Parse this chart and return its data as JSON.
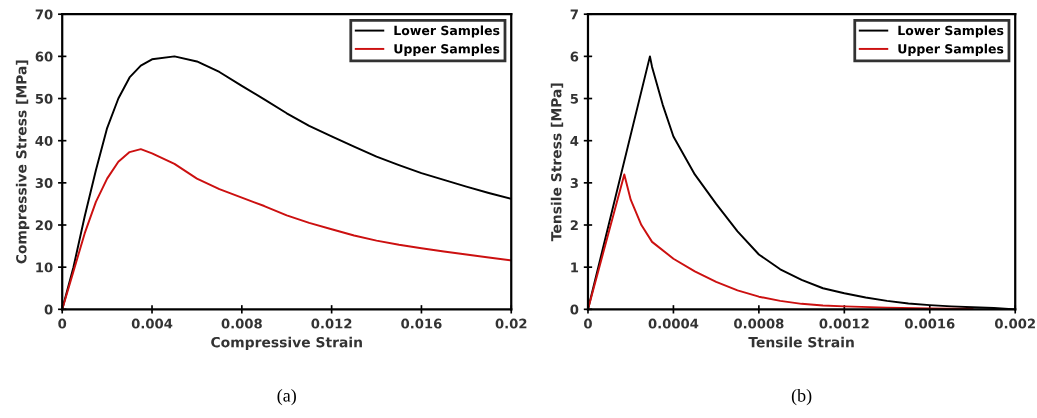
{
  "chart_data": [
    {
      "type": "line",
      "xlabel": "Compressive Strain",
      "ylabel": "Compressive Stress [MPa]",
      "annotations": [
        "(a)"
      ],
      "xlim": [
        0,
        0.02
      ],
      "ylim": [
        0,
        70
      ],
      "xticks": [
        0,
        0.004,
        0.008,
        0.012,
        0.016,
        0.02
      ],
      "yticks": [
        0,
        10,
        20,
        30,
        40,
        50,
        60,
        70
      ],
      "grid": false,
      "legend": "top right",
      "marker": "none",
      "line_style": "solid",
      "series": [
        {
          "name": "Lower Samples",
          "color": "#000000",
          "x": [
            0,
            0.0005,
            0.001,
            0.0015,
            0.002,
            0.0025,
            0.003,
            0.0035,
            0.004,
            0.005,
            0.006,
            0.007,
            0.008,
            0.009,
            0.01,
            0.011,
            0.012,
            0.013,
            0.014,
            0.015,
            0.016,
            0.017,
            0.018,
            0.019,
            0.02
          ],
          "values": [
            0,
            10,
            22,
            33,
            43,
            50,
            55,
            57.8,
            59.3,
            60,
            58.8,
            56.3,
            53,
            49.8,
            46.5,
            43.5,
            41,
            38.6,
            36.2,
            34.2,
            32.3,
            30.7,
            29.1,
            27.6,
            26.2
          ]
        },
        {
          "name": "Upper Samples",
          "color": "#cc1010",
          "x": [
            0,
            0.0005,
            0.001,
            0.0015,
            0.002,
            0.0025,
            0.003,
            0.0035,
            0.004,
            0.005,
            0.006,
            0.007,
            0.008,
            0.009,
            0.01,
            0.011,
            0.012,
            0.013,
            0.014,
            0.015,
            0.016,
            0.017,
            0.018,
            0.019,
            0.02
          ],
          "values": [
            0,
            9,
            18,
            25.5,
            31,
            35,
            37.3,
            38,
            37,
            34.5,
            31,
            28.5,
            26.5,
            24.5,
            22.3,
            20.5,
            19,
            17.5,
            16.3,
            15.3,
            14.5,
            13.7,
            13,
            12.3,
            11.6
          ]
        }
      ]
    },
    {
      "type": "line",
      "xlabel": "Tensile Strain",
      "ylabel": "Tensile Stress [MPa]",
      "annotations": [
        "(b)"
      ],
      "xlim": [
        0,
        0.002
      ],
      "ylim": [
        0,
        7
      ],
      "xticks": [
        0,
        0.0004,
        0.0008,
        0.0012,
        0.0016,
        0.002
      ],
      "yticks": [
        0,
        1,
        2,
        3,
        4,
        5,
        6,
        7
      ],
      "grid": false,
      "legend": "top right",
      "marker": "none",
      "line_style": "solid",
      "series": [
        {
          "name": "Lower Samples",
          "color": "#000000",
          "x": [
            0,
            0.00029,
            0.0003,
            0.00035,
            0.0004,
            0.0005,
            0.0006,
            0.0007,
            0.0008,
            0.0009,
            0.001,
            0.0011,
            0.0012,
            0.0013,
            0.0014,
            0.0015,
            0.0016,
            0.0017,
            0.0018,
            0.0019,
            0.002
          ],
          "values": [
            0,
            6.0,
            5.75,
            4.85,
            4.1,
            3.2,
            2.5,
            1.85,
            1.3,
            0.95,
            0.7,
            0.5,
            0.38,
            0.28,
            0.2,
            0.14,
            0.1,
            0.07,
            0.05,
            0.03,
            0
          ]
        },
        {
          "name": "Upper Samples",
          "color": "#cc1010",
          "x": [
            0,
            0.00017,
            0.0002,
            0.00025,
            0.0003,
            0.0004,
            0.0005,
            0.0006,
            0.0007,
            0.0008,
            0.0009,
            0.001,
            0.0011,
            0.0012,
            0.0014,
            0.0016,
            0.0018
          ],
          "values": [
            0,
            3.2,
            2.6,
            2.0,
            1.6,
            1.2,
            0.9,
            0.65,
            0.45,
            0.3,
            0.2,
            0.13,
            0.09,
            0.07,
            0.04,
            0.02,
            0.01
          ]
        }
      ]
    }
  ]
}
